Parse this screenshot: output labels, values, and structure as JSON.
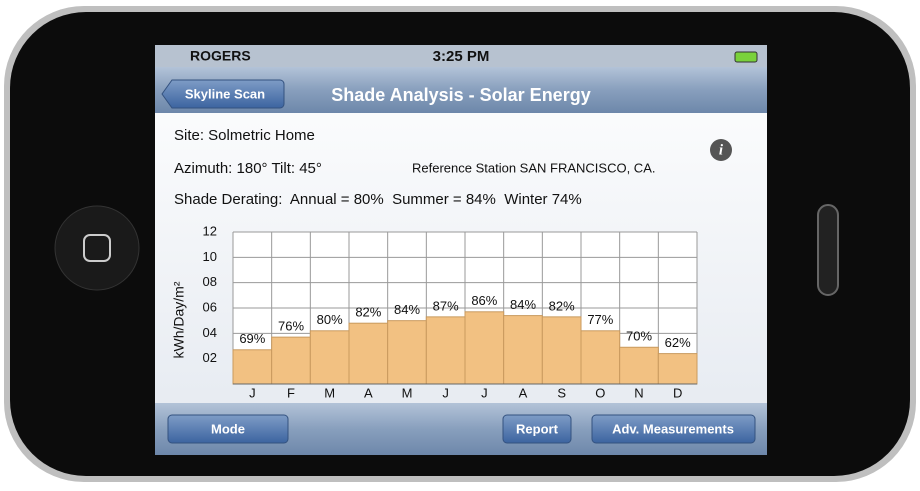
{
  "status_bar": {
    "carrier": "ROGERS",
    "time": "3:25 PM"
  },
  "nav_bar": {
    "back_button": "Skyline Scan",
    "title": "Shade Analysis - Solar Energy"
  },
  "info": {
    "site": "Site: Solmetric Home",
    "orientation": "Azimuth: 180° Tilt: 45°",
    "reference": "Reference Station SAN FRANCISCO, CA.",
    "derating": "Shade Derating:  Annual = 80%  Summer = 84%  Winter 74%"
  },
  "chart_data": {
    "type": "bar",
    "y_label": "kWh/Day/m²",
    "categories": [
      "J",
      "F",
      "M",
      "A",
      "M",
      "J",
      "J",
      "A",
      "S",
      "O",
      "N",
      "D"
    ],
    "values": [
      2.7,
      3.7,
      4.2,
      4.8,
      5.0,
      5.3,
      5.7,
      5.4,
      5.3,
      4.2,
      2.9,
      2.4
    ],
    "bar_labels": [
      "69%",
      "76%",
      "80%",
      "82%",
      "84%",
      "87%",
      "86%",
      "84%",
      "82%",
      "77%",
      "70%",
      "62%"
    ],
    "color": "#f2c182",
    "ylim": [
      0,
      12
    ],
    "yticks": [
      {
        "value": 2,
        "label": "02"
      },
      {
        "value": 4,
        "label": "04"
      },
      {
        "value": 6,
        "label": "06"
      },
      {
        "value": 8,
        "label": "08"
      },
      10,
      12
    ],
    "grid": true
  },
  "toolbar": {
    "buttons": [
      "Mode",
      "Report",
      "Adv. Measurements"
    ]
  }
}
